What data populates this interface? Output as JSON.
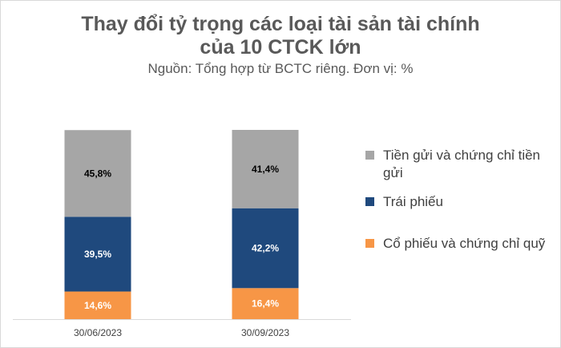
{
  "chart_data": {
    "type": "bar",
    "stacked": true,
    "title_lines": [
      "Thay đổi tỷ trọng các loại tài sản tài chính",
      "của 10 CTCK lớn"
    ],
    "subtitle": "Nguồn: Tổng hợp từ BCTC riêng. Đơn vị: %",
    "categories": [
      "30/06/2023",
      "30/09/2023"
    ],
    "ylim": [
      0,
      100
    ],
    "grid": false,
    "legend_position": "right",
    "series": [
      {
        "name": "Cổ phiếu và chứng chỉ quỹ",
        "values": [
          14.6,
          16.4
        ],
        "labels": [
          "14,6%",
          "16,4%"
        ],
        "color": "#f79646"
      },
      {
        "name": "Trái phiếu",
        "values": [
          39.5,
          42.2
        ],
        "labels": [
          "39,5%",
          "42,2%"
        ],
        "color": "#1f497d"
      },
      {
        "name": "Tiền gửi và chứng chỉ tiền gửi",
        "values": [
          45.8,
          41.4
        ],
        "labels": [
          "45,8%",
          "41,4%"
        ],
        "color": "#a6a6a6"
      }
    ],
    "legend_order": [
      2,
      1,
      0
    ]
  }
}
